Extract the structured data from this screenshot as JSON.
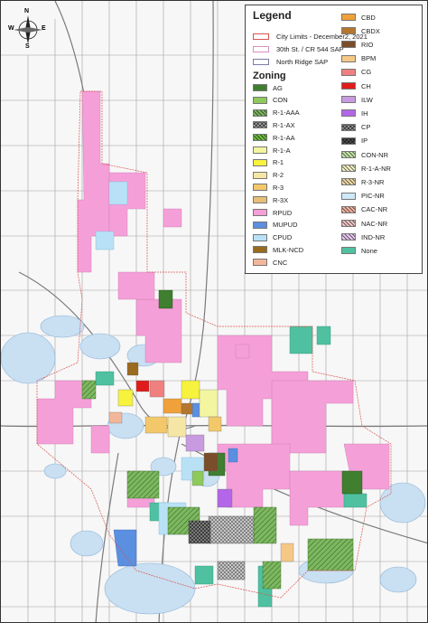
{
  "legend": {
    "title": "Legend",
    "boundaries": [
      {
        "label": "City Limits - December2, 2021",
        "color": "#d9534f"
      },
      {
        "label": "30th St. / CR 544 SAP",
        "color": "#d98fc4"
      },
      {
        "label": "North Ridge SAP",
        "color": "#7b7ba8"
      }
    ],
    "zoning_title": "Zoning",
    "zoning_left": [
      {
        "label": "AG",
        "color": "#3f7f2f",
        "pattern": "solid"
      },
      {
        "label": "CON",
        "color": "#8dc95b",
        "pattern": "solid"
      },
      {
        "label": "R-1-AAA",
        "color": "#7db860",
        "pattern": "hatch"
      },
      {
        "label": "R-1-AX",
        "color": "#a8a8a8",
        "pattern": "xhatch"
      },
      {
        "label": "R-1-AA",
        "color": "#6dbd3e",
        "pattern": "hatch"
      },
      {
        "label": "R-1-A",
        "color": "#f3f5a0",
        "pattern": "solid"
      },
      {
        "label": "R-1",
        "color": "#f6f23e",
        "pattern": "solid"
      },
      {
        "label": "R-2",
        "color": "#f6e6a6",
        "pattern": "solid"
      },
      {
        "label": "R-3",
        "color": "#f2c86a",
        "pattern": "solid"
      },
      {
        "label": "R-3X",
        "color": "#e8bf78",
        "pattern": "solid"
      },
      {
        "label": "RPUD",
        "color": "#f59fd8",
        "pattern": "solid"
      },
      {
        "label": "MUPUD",
        "color": "#5b8fe0",
        "pattern": "solid"
      },
      {
        "label": "CPUD",
        "color": "#b9e1f6",
        "pattern": "solid"
      },
      {
        "label": "MLK-NCD",
        "color": "#9a6a1e",
        "pattern": "solid"
      },
      {
        "label": "CNC",
        "color": "#f2b79a",
        "pattern": "solid"
      }
    ],
    "zoning_right": [
      {
        "label": "CBD",
        "color": "#f1a13a",
        "pattern": "solid"
      },
      {
        "label": "CBDX",
        "color": "#b5772d",
        "pattern": "solid"
      },
      {
        "label": "RIO",
        "color": "#7a4e2a",
        "pattern": "solid"
      },
      {
        "label": "BPM",
        "color": "#f6c886",
        "pattern": "solid"
      },
      {
        "label": "CG",
        "color": "#f08080",
        "pattern": "solid"
      },
      {
        "label": "CH",
        "color": "#e01b1b",
        "pattern": "solid"
      },
      {
        "label": "ILW",
        "color": "#c89be0",
        "pattern": "solid"
      },
      {
        "label": "IH",
        "color": "#b366e8",
        "pattern": "solid"
      },
      {
        "label": "CP",
        "color": "#9a9a9a",
        "pattern": "xhatch"
      },
      {
        "label": "IP",
        "color": "#555555",
        "pattern": "xhatch"
      },
      {
        "label": "CON-NR",
        "color": "#c6e6a8",
        "pattern": "hatch"
      },
      {
        "label": "R-1-A-NR",
        "color": "#f6f5c8",
        "pattern": "hatch"
      },
      {
        "label": "R-3-NR",
        "color": "#f0d9a8",
        "pattern": "hatch"
      },
      {
        "label": "PIC-NR",
        "color": "#cfe9f8",
        "pattern": "solid"
      },
      {
        "label": "CAC-NR",
        "color": "#f4b3a3",
        "pattern": "hatch"
      },
      {
        "label": "NAC-NR",
        "color": "#f2c6c6",
        "pattern": "hatch"
      },
      {
        "label": "IND-NR",
        "color": "#e8c8f0",
        "pattern": "hatch"
      },
      {
        "label": "None",
        "color": "#4fc1a1",
        "pattern": "solid"
      }
    ]
  },
  "compass": {
    "n": "N",
    "s": "S",
    "e": "E",
    "w": "W"
  },
  "colors": {
    "water": "#c9dff2",
    "road": "#9a9a9a",
    "roadMajor": "#7d7d7d",
    "background": "#f7f7f7",
    "rpud": "#f59fd8",
    "none": "#4fc1a1"
  }
}
